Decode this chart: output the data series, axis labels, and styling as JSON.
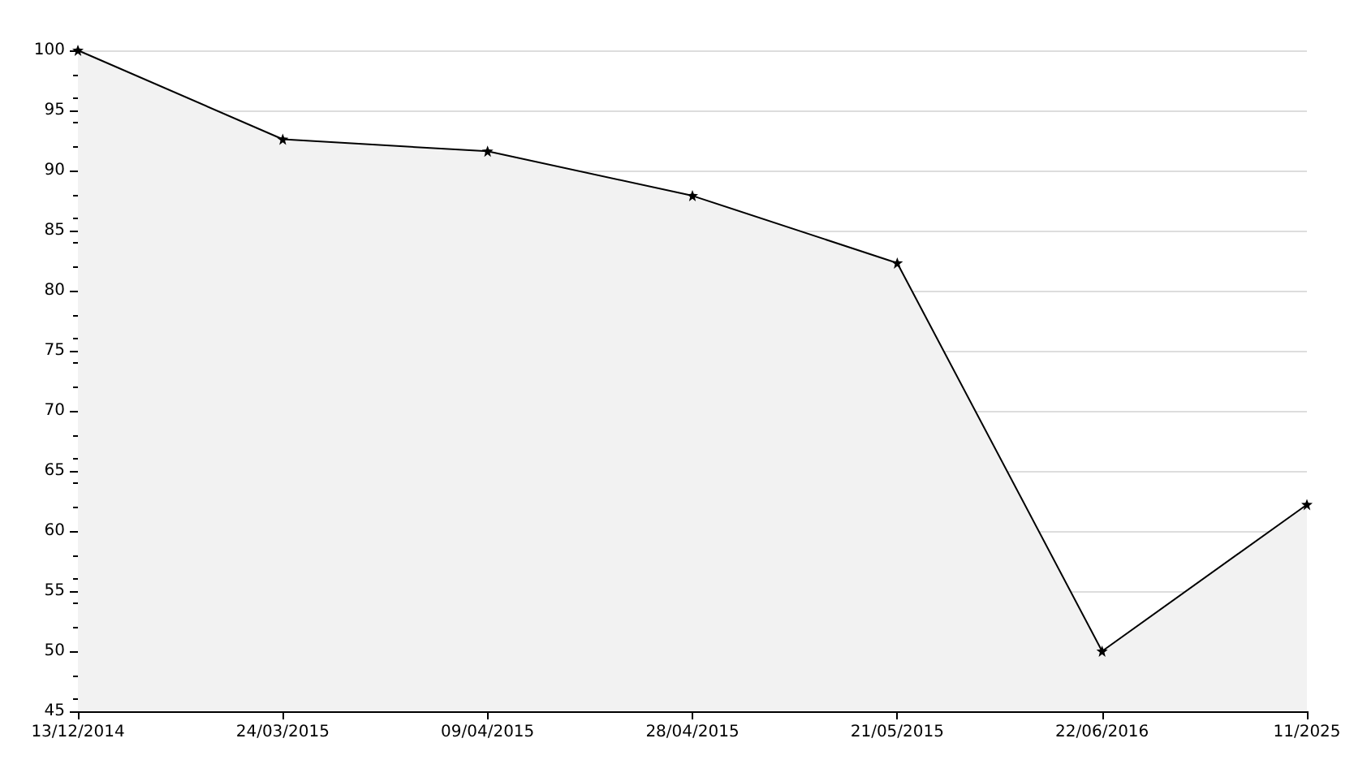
{
  "chart_data": {
    "type": "area",
    "categories": [
      "13/12/2014",
      "24/03/2015",
      "09/04/2015",
      "28/04/2015",
      "21/05/2015",
      "22/06/2016",
      "11/2025"
    ],
    "series": [
      {
        "color": "#000000",
        "values": [
          100,
          92.6,
          91.6,
          87.9,
          82.3,
          50,
          62.2
        ]
      }
    ],
    "ylim": [
      45,
      100
    ],
    "yticks": [
      45,
      50,
      55,
      60,
      65,
      70,
      75,
      80,
      85,
      90,
      95,
      100
    ],
    "grid": "y",
    "marker": "star",
    "line_style": "solid"
  }
}
